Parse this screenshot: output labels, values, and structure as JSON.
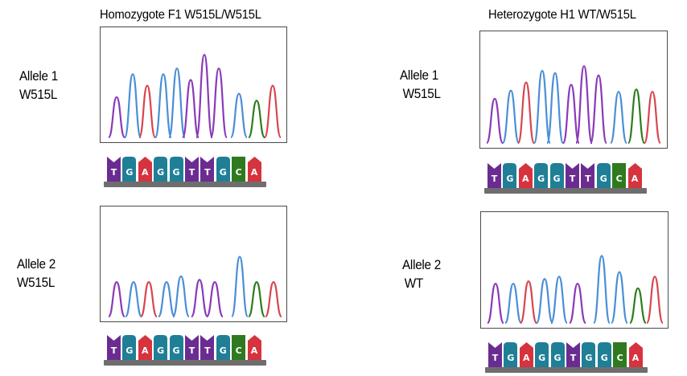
{
  "colors": {
    "A": "#d6333f",
    "C": "#2f7a1f",
    "G": "#1f7f96",
    "T": "#6b2c91",
    "trace_A": "#d8464f",
    "trace_C": "#2e7d1e",
    "trace_G": "#4a8fd6",
    "trace_T": "#8a3ab9",
    "backbone": "#6e6e6e"
  },
  "panels": [
    {
      "title": "Homozygote F1 W515L/W515L",
      "alleles": [
        {
          "label_line1": "Allele 1",
          "label_line2": "W515L",
          "sequence": [
            "T",
            "G",
            "A",
            "G",
            "G",
            "T",
            "T",
            "G",
            "C",
            "A"
          ]
        },
        {
          "label_line1": "Allele 2",
          "label_line2": "W515L",
          "sequence": [
            "T",
            "G",
            "A",
            "G",
            "G",
            "T",
            "T",
            "G",
            "C",
            "A"
          ]
        }
      ]
    },
    {
      "title": "Heterozygote H1 WT/W515L",
      "alleles": [
        {
          "label_line1": "Allele 1",
          "label_line2": "W515L",
          "sequence": [
            "T",
            "G",
            "A",
            "G",
            "G",
            "T",
            "T",
            "G",
            "C",
            "A"
          ]
        },
        {
          "label_line1": "Allele 2",
          "label_line2": "WT",
          "sequence": [
            "T",
            "G",
            "A",
            "G",
            "G",
            "T",
            "G",
            "G",
            "C",
            "A"
          ]
        }
      ]
    }
  ]
}
